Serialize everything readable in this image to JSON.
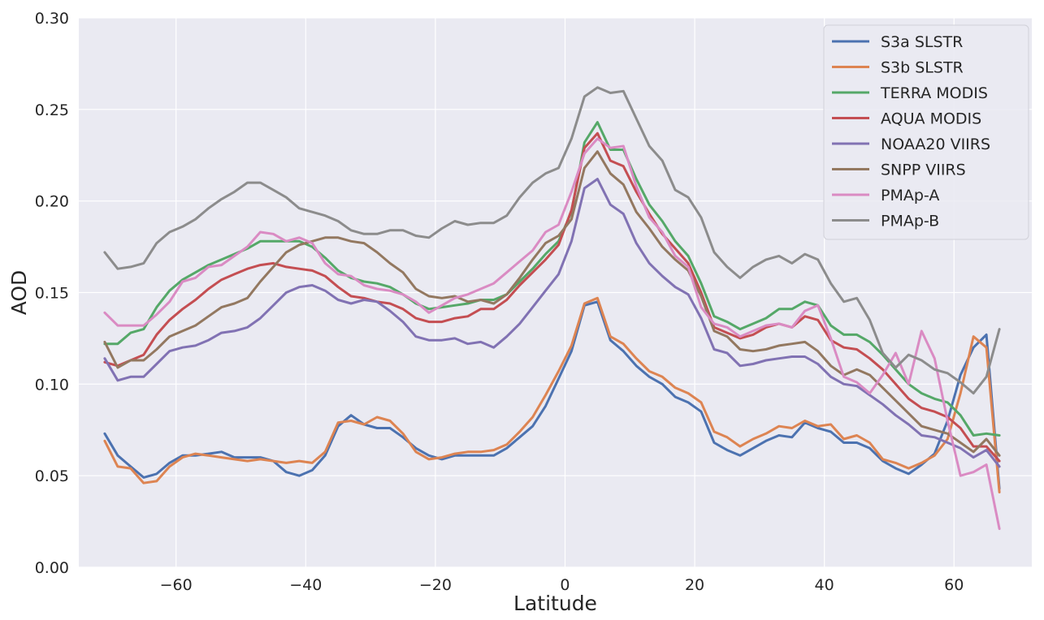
{
  "chart_data": {
    "type": "line",
    "xlabel": "Latitude",
    "ylabel": "AOD",
    "xlim": [
      -75,
      72
    ],
    "ylim": [
      0,
      0.3
    ],
    "xticks": [
      -60,
      -40,
      -20,
      0,
      20,
      40,
      60
    ],
    "xtick_labels": [
      "−60",
      "−40",
      "−20",
      "0",
      "20",
      "40",
      "60"
    ],
    "yticks": [
      0,
      0.05,
      0.1,
      0.15,
      0.2,
      0.25,
      0.3
    ],
    "ytick_labels": [
      "0.00",
      "0.05",
      "0.10",
      "0.15",
      "0.20",
      "0.25",
      "0.30"
    ],
    "grid": true,
    "legend_position": "top-right",
    "background_color": "#eaeaf2",
    "x": [
      -71,
      -69,
      -67,
      -65,
      -63,
      -61,
      -59,
      -57,
      -55,
      -53,
      -51,
      -49,
      -47,
      -45,
      -43,
      -41,
      -39,
      -37,
      -35,
      -33,
      -31,
      -29,
      -27,
      -25,
      -23,
      -21,
      -19,
      -17,
      -15,
      -13,
      -11,
      -9,
      -7,
      -5,
      -3,
      -1,
      1,
      3,
      5,
      7,
      9,
      11,
      13,
      15,
      17,
      19,
      21,
      23,
      25,
      27,
      29,
      31,
      33,
      35,
      37,
      39,
      41,
      43,
      45,
      47,
      49,
      51,
      53,
      55,
      57,
      59,
      61,
      63,
      65,
      67
    ],
    "series": [
      {
        "name": "S3a SLSTR",
        "color": "#4c72b0",
        "values": [
          0.073,
          0.061,
          0.055,
          0.049,
          0.051,
          0.057,
          0.061,
          0.061,
          0.062,
          0.063,
          0.06,
          0.06,
          0.06,
          0.058,
          0.052,
          0.05,
          0.053,
          0.061,
          0.077,
          0.083,
          0.078,
          0.076,
          0.076,
          0.071,
          0.065,
          0.061,
          0.059,
          0.061,
          0.061,
          0.061,
          0.061,
          0.065,
          0.071,
          0.077,
          0.088,
          0.103,
          0.118,
          0.143,
          0.145,
          0.124,
          0.118,
          0.11,
          0.104,
          0.1,
          0.093,
          0.09,
          0.085,
          0.068,
          0.064,
          0.061,
          0.065,
          0.069,
          0.072,
          0.071,
          0.079,
          0.076,
          0.074,
          0.068,
          0.068,
          0.065,
          0.058,
          0.054,
          0.051,
          0.056,
          0.062,
          0.08,
          0.105,
          0.12,
          0.127,
          0.043
        ]
      },
      {
        "name": "S3b SLSTR",
        "color": "#dd8452",
        "values": [
          0.069,
          0.055,
          0.054,
          0.046,
          0.047,
          0.055,
          0.06,
          0.062,
          0.061,
          0.06,
          0.059,
          0.058,
          0.059,
          0.058,
          0.057,
          0.058,
          0.057,
          0.063,
          0.079,
          0.08,
          0.078,
          0.082,
          0.08,
          0.073,
          0.063,
          0.059,
          0.06,
          0.062,
          0.063,
          0.063,
          0.064,
          0.067,
          0.074,
          0.082,
          0.094,
          0.107,
          0.121,
          0.144,
          0.147,
          0.126,
          0.122,
          0.114,
          0.107,
          0.104,
          0.098,
          0.095,
          0.09,
          0.074,
          0.071,
          0.066,
          0.07,
          0.073,
          0.077,
          0.076,
          0.08,
          0.077,
          0.078,
          0.07,
          0.072,
          0.068,
          0.059,
          0.057,
          0.054,
          0.057,
          0.061,
          0.07,
          0.095,
          0.126,
          0.12,
          0.041
        ]
      },
      {
        "name": "TERRA MODIS",
        "color": "#55a868",
        "values": [
          0.122,
          0.122,
          0.128,
          0.13,
          0.142,
          0.151,
          0.157,
          0.161,
          0.165,
          0.168,
          0.171,
          0.174,
          0.178,
          0.178,
          0.178,
          0.178,
          0.175,
          0.169,
          0.162,
          0.158,
          0.156,
          0.155,
          0.153,
          0.149,
          0.144,
          0.141,
          0.142,
          0.143,
          0.144,
          0.146,
          0.146,
          0.149,
          0.156,
          0.163,
          0.171,
          0.178,
          0.194,
          0.232,
          0.243,
          0.228,
          0.228,
          0.212,
          0.198,
          0.189,
          0.178,
          0.17,
          0.155,
          0.137,
          0.134,
          0.13,
          0.133,
          0.136,
          0.141,
          0.141,
          0.145,
          0.143,
          0.132,
          0.127,
          0.127,
          0.123,
          0.116,
          0.108,
          0.1,
          0.095,
          0.092,
          0.09,
          0.083,
          0.072,
          0.073,
          0.072
        ]
      },
      {
        "name": "AQUA MODIS",
        "color": "#c44e52",
        "values": [
          0.112,
          0.11,
          0.113,
          0.116,
          0.127,
          0.135,
          0.141,
          0.146,
          0.152,
          0.157,
          0.16,
          0.163,
          0.165,
          0.166,
          0.164,
          0.163,
          0.162,
          0.159,
          0.153,
          0.148,
          0.147,
          0.145,
          0.144,
          0.141,
          0.136,
          0.134,
          0.134,
          0.136,
          0.137,
          0.141,
          0.141,
          0.146,
          0.154,
          0.161,
          0.168,
          0.176,
          0.195,
          0.229,
          0.237,
          0.222,
          0.219,
          0.205,
          0.193,
          0.182,
          0.174,
          0.166,
          0.15,
          0.131,
          0.128,
          0.125,
          0.127,
          0.131,
          0.133,
          0.131,
          0.137,
          0.135,
          0.124,
          0.12,
          0.119,
          0.114,
          0.108,
          0.1,
          0.092,
          0.087,
          0.085,
          0.082,
          0.076,
          0.066,
          0.066,
          0.058
        ]
      },
      {
        "name": "NOAA20 VIIRS",
        "color": "#8172b3",
        "values": [
          0.114,
          0.102,
          0.104,
          0.104,
          0.111,
          0.118,
          0.12,
          0.121,
          0.124,
          0.128,
          0.129,
          0.131,
          0.136,
          0.143,
          0.15,
          0.153,
          0.154,
          0.151,
          0.146,
          0.144,
          0.146,
          0.145,
          0.14,
          0.134,
          0.126,
          0.124,
          0.124,
          0.125,
          0.122,
          0.123,
          0.12,
          0.126,
          0.133,
          0.142,
          0.151,
          0.16,
          0.178,
          0.207,
          0.212,
          0.198,
          0.193,
          0.177,
          0.166,
          0.159,
          0.153,
          0.149,
          0.136,
          0.119,
          0.117,
          0.11,
          0.111,
          0.113,
          0.114,
          0.115,
          0.115,
          0.111,
          0.104,
          0.1,
          0.099,
          0.094,
          0.089,
          0.083,
          0.078,
          0.072,
          0.071,
          0.068,
          0.065,
          0.06,
          0.064,
          0.055
        ]
      },
      {
        "name": "SNPP VIIRS",
        "color": "#937860",
        "values": [
          0.123,
          0.109,
          0.113,
          0.113,
          0.119,
          0.126,
          0.129,
          0.132,
          0.137,
          0.142,
          0.144,
          0.147,
          0.156,
          0.164,
          0.172,
          0.176,
          0.178,
          0.18,
          0.18,
          0.178,
          0.177,
          0.172,
          0.166,
          0.161,
          0.152,
          0.148,
          0.147,
          0.148,
          0.145,
          0.146,
          0.144,
          0.149,
          0.158,
          0.168,
          0.177,
          0.181,
          0.19,
          0.218,
          0.227,
          0.215,
          0.209,
          0.194,
          0.185,
          0.175,
          0.168,
          0.162,
          0.148,
          0.129,
          0.126,
          0.119,
          0.118,
          0.119,
          0.121,
          0.122,
          0.123,
          0.118,
          0.11,
          0.105,
          0.108,
          0.105,
          0.098,
          0.091,
          0.084,
          0.077,
          0.075,
          0.073,
          0.068,
          0.063,
          0.07,
          0.061
        ]
      },
      {
        "name": "PMAp-A",
        "color": "#da8bc3",
        "values": [
          0.139,
          0.132,
          0.132,
          0.132,
          0.138,
          0.145,
          0.156,
          0.158,
          0.164,
          0.165,
          0.17,
          0.175,
          0.183,
          0.182,
          0.178,
          0.18,
          0.177,
          0.166,
          0.16,
          0.159,
          0.154,
          0.152,
          0.151,
          0.149,
          0.145,
          0.139,
          0.143,
          0.147,
          0.149,
          0.152,
          0.155,
          0.161,
          0.167,
          0.173,
          0.183,
          0.187,
          0.205,
          0.226,
          0.234,
          0.229,
          0.23,
          0.208,
          0.191,
          0.183,
          0.17,
          0.164,
          0.142,
          0.133,
          0.131,
          0.126,
          0.129,
          0.132,
          0.133,
          0.131,
          0.14,
          0.143,
          0.125,
          0.104,
          0.101,
          0.095,
          0.105,
          0.117,
          0.1,
          0.129,
          0.114,
          0.08,
          0.05,
          0.052,
          0.056,
          0.021
        ]
      },
      {
        "name": "PMAp-B",
        "color": "#8c8c8c",
        "values": [
          0.172,
          0.163,
          0.164,
          0.166,
          0.177,
          0.183,
          0.186,
          0.19,
          0.196,
          0.201,
          0.205,
          0.21,
          0.21,
          0.206,
          0.202,
          0.196,
          0.194,
          0.192,
          0.189,
          0.184,
          0.182,
          0.182,
          0.184,
          0.184,
          0.181,
          0.18,
          0.185,
          0.189,
          0.187,
          0.188,
          0.188,
          0.192,
          0.202,
          0.21,
          0.215,
          0.218,
          0.234,
          0.257,
          0.262,
          0.259,
          0.26,
          0.245,
          0.23,
          0.222,
          0.206,
          0.202,
          0.191,
          0.172,
          0.164,
          0.158,
          0.164,
          0.168,
          0.17,
          0.166,
          0.171,
          0.168,
          0.155,
          0.145,
          0.147,
          0.135,
          0.117,
          0.109,
          0.116,
          0.113,
          0.108,
          0.106,
          0.101,
          0.095,
          0.104,
          0.13
        ]
      }
    ]
  }
}
